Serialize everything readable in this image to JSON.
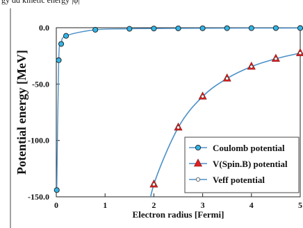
{
  "header_fragment": "gy     dd     kinetic energy     |φ|",
  "chart_data": {
    "type": "scatter",
    "xlabel": "Electron radius [Fermi]",
    "ylabel": "Potential energy  [MeV]",
    "xlim": [
      0,
      5
    ],
    "ylim": [
      -150,
      0
    ],
    "x_ticks": [
      "0",
      "1",
      "2",
      "3",
      "4",
      "5"
    ],
    "y_ticks": [
      "0.0",
      "-50.0",
      "-100.0",
      "-150.0"
    ],
    "grid": false,
    "legend_position": "bottom-right",
    "series": [
      {
        "name": "Coulomb potential",
        "marker": "circle",
        "color": "#33b5e5",
        "curve_color": "#4a90c8",
        "x": [
          0.01,
          0.05,
          0.1,
          0.2,
          0.8,
          1.5,
          2.0,
          2.5,
          3.0,
          3.5,
          4.0,
          4.5,
          5.0
        ],
        "y": [
          -144.0,
          -28.8,
          -14.4,
          -7.2,
          -1.8,
          -0.96,
          -0.72,
          -0.58,
          -0.48,
          -0.41,
          -0.36,
          -0.32,
          -0.29
        ]
      },
      {
        "name": "V(Spin.B) potential",
        "marker": "triangle",
        "color": "#e02020",
        "x": [
          2.0,
          2.5,
          3.0,
          3.5,
          4.0,
          4.5,
          5.0
        ],
        "y": [
          -139.0,
          -88.5,
          -61.0,
          -45.0,
          -34.5,
          -27.5,
          -22.5
        ]
      },
      {
        "name": "Veff potential",
        "marker": "open-circle",
        "color": "#ffffff",
        "curve_color": "#4a90c8",
        "x": [
          2.0,
          2.5,
          3.0,
          3.5,
          4.0,
          4.5,
          5.0
        ],
        "y": [
          -139.0,
          -88.5,
          -61.0,
          -45.0,
          -34.5,
          -27.5,
          -22.5
        ]
      }
    ]
  }
}
